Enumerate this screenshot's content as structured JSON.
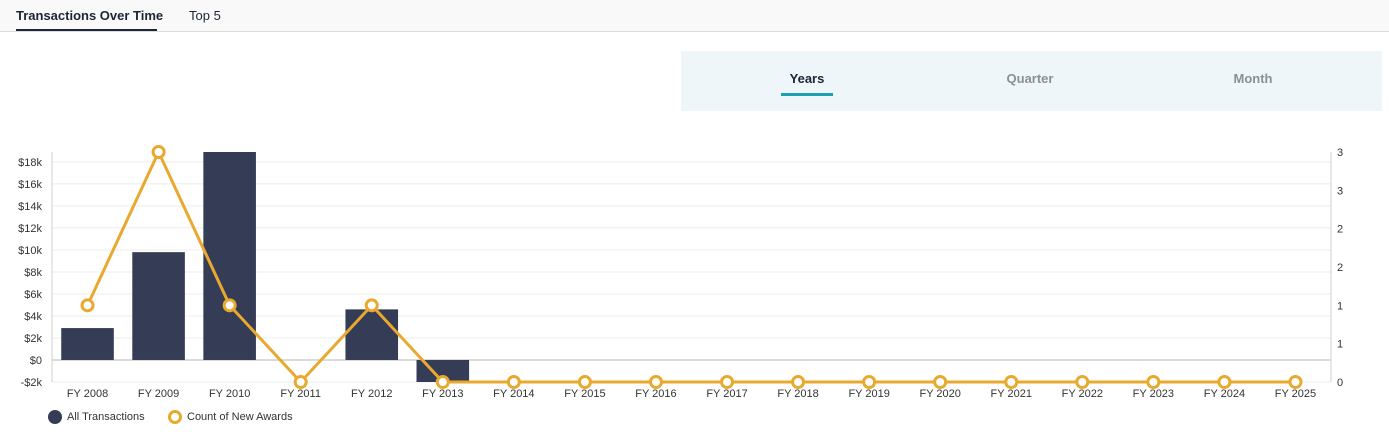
{
  "tabs": [
    {
      "label": "Transactions Over Time",
      "active": true
    },
    {
      "label": "Top 5",
      "active": false
    }
  ],
  "period_tabs": [
    {
      "label": "Years",
      "active": true
    },
    {
      "label": "Quarter",
      "active": false
    },
    {
      "label": "Month",
      "active": false
    }
  ],
  "colors": {
    "bar": "#353c55",
    "line": "#e9a92f",
    "accent": "#1e9fb3",
    "grid": "#ececec"
  },
  "legend": [
    {
      "label": "All Transactions",
      "style": "filled-dot"
    },
    {
      "label": "Count of New Awards",
      "style": "ring-dot"
    }
  ],
  "chart_data": {
    "type": "bar",
    "categories": [
      "FY 2008",
      "FY 2009",
      "FY 2010",
      "FY 2011",
      "FY 2012",
      "FY 2013",
      "FY 2014",
      "FY 2015",
      "FY 2016",
      "FY 2017",
      "FY 2018",
      "FY 2019",
      "FY 2020",
      "FY 2021",
      "FY 2022",
      "FY 2023",
      "FY 2024",
      "FY 2025"
    ],
    "series": [
      {
        "name": "All Transactions",
        "type": "bar",
        "axis": "left",
        "values": [
          2900,
          9800,
          18900,
          0,
          4600,
          -2000,
          0,
          0,
          0,
          0,
          0,
          0,
          0,
          0,
          0,
          0,
          0,
          0
        ]
      },
      {
        "name": "Count of New Awards",
        "type": "line",
        "axis": "right",
        "values": [
          1,
          3,
          1,
          0,
          1,
          0,
          0,
          0,
          0,
          0,
          0,
          0,
          0,
          0,
          0,
          0,
          0,
          0
        ]
      }
    ],
    "y_left": {
      "ticks": [
        -2000,
        0,
        2000,
        4000,
        6000,
        8000,
        10000,
        12000,
        14000,
        16000,
        18000
      ],
      "tick_labels": [
        "-$2k",
        "$0",
        "$2k",
        "$4k",
        "$6k",
        "$8k",
        "$10k",
        "$12k",
        "$14k",
        "$16k",
        "$18k"
      ],
      "range": [
        -2000,
        18900
      ]
    },
    "y_right": {
      "ticks": [
        0,
        0.5,
        1,
        1.5,
        2,
        2.5,
        3
      ],
      "tick_labels": [
        "0",
        "1",
        "1",
        "2",
        "2",
        "3",
        "3"
      ],
      "range": [
        0,
        3
      ]
    },
    "grid": true,
    "legend_position": "bottom-left"
  }
}
